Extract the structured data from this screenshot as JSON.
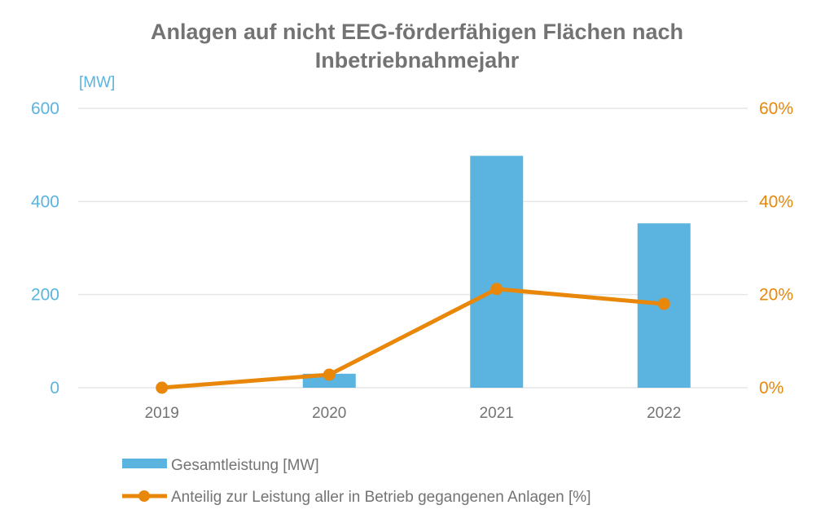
{
  "chart_data": {
    "type": "bar",
    "title": "Anlagen auf nicht EEG-förderfähigen Flächen nach Inbetriebnahmejahr",
    "title_lines": [
      "Anlagen auf nicht EEG-förderfähigen Flächen nach",
      "Inbetriebnahmejahr"
    ],
    "categories": [
      "2019",
      "2020",
      "2021",
      "2022"
    ],
    "y_left": {
      "label": "[MW]",
      "ylim": [
        0,
        600
      ],
      "ticks": [
        0,
        200,
        400,
        600
      ],
      "tick_labels": [
        "0",
        "200",
        "400",
        "600"
      ],
      "color": "#5ab4df"
    },
    "y_right": {
      "label": "",
      "ylim": [
        0,
        60
      ],
      "ticks": [
        0,
        20,
        40,
        60
      ],
      "tick_labels": [
        "0%",
        "20%",
        "40%",
        "60%"
      ],
      "color": "#e8870a"
    },
    "series": [
      {
        "name": "Gesamtleistung [MW]",
        "type": "bar",
        "axis": "left",
        "color": "#5ab4df",
        "values": [
          0,
          30,
          498,
          353
        ]
      },
      {
        "name": "Anteilig zur Leistung aller in Betrieb gegangenen Anlagen [%]",
        "type": "line",
        "axis": "right",
        "color": "#e8870a",
        "values": [
          0,
          2.8,
          21.2,
          18.0
        ]
      }
    ],
    "grid": true,
    "grid_color": "#e6e6e6",
    "legend_placement": "bottom-left"
  }
}
